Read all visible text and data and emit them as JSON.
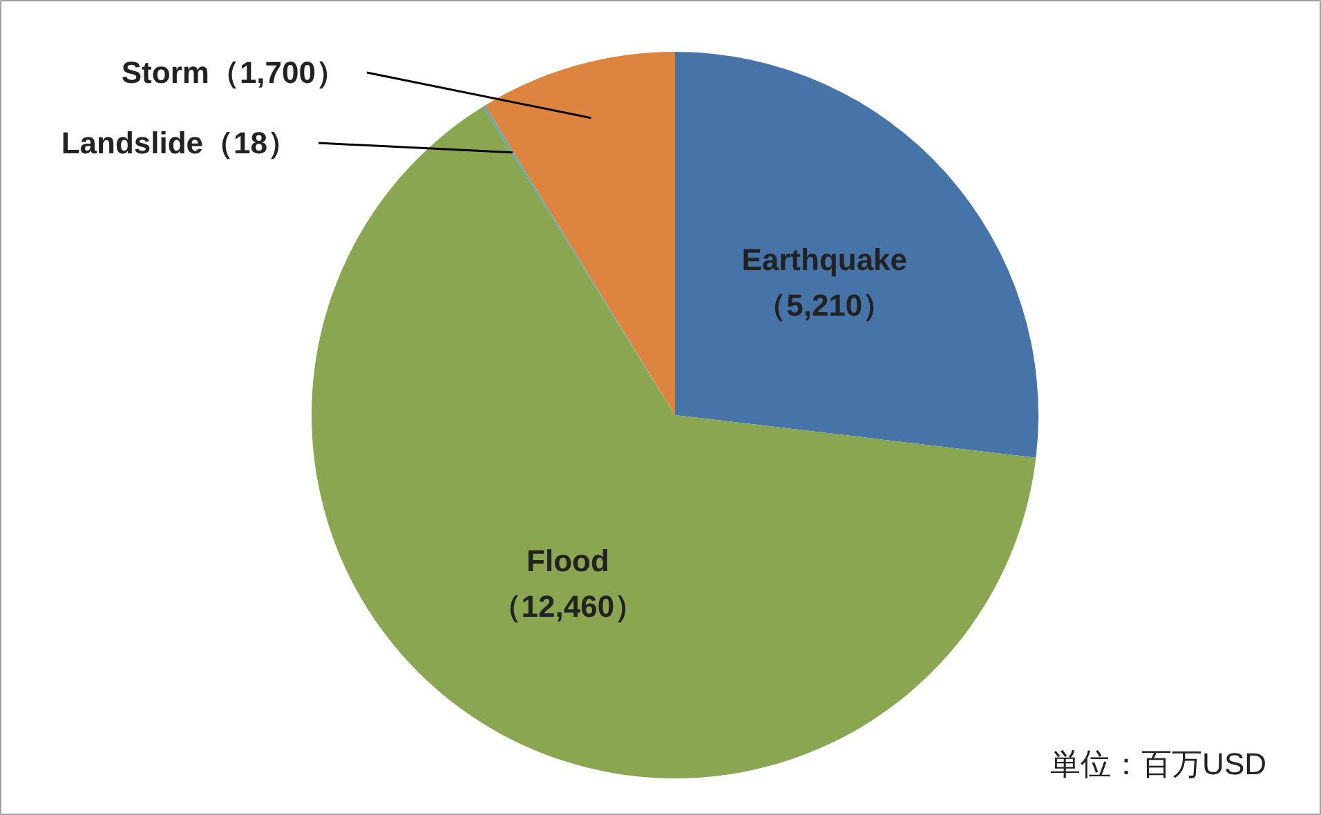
{
  "chart_data": {
    "type": "pie",
    "categories": [
      "Earthquake",
      "Flood",
      "Landslide",
      "Storm"
    ],
    "values": [
      5210,
      12460,
      18,
      1700
    ],
    "value_labels": [
      "（5,210）",
      "（12,460）",
      "（18）",
      "（1,700）"
    ],
    "colors": [
      "#4674a9",
      "#8aa650",
      "#4bacc6",
      "#dd853e"
    ],
    "annotations": [
      "単位：百万USD"
    ]
  }
}
